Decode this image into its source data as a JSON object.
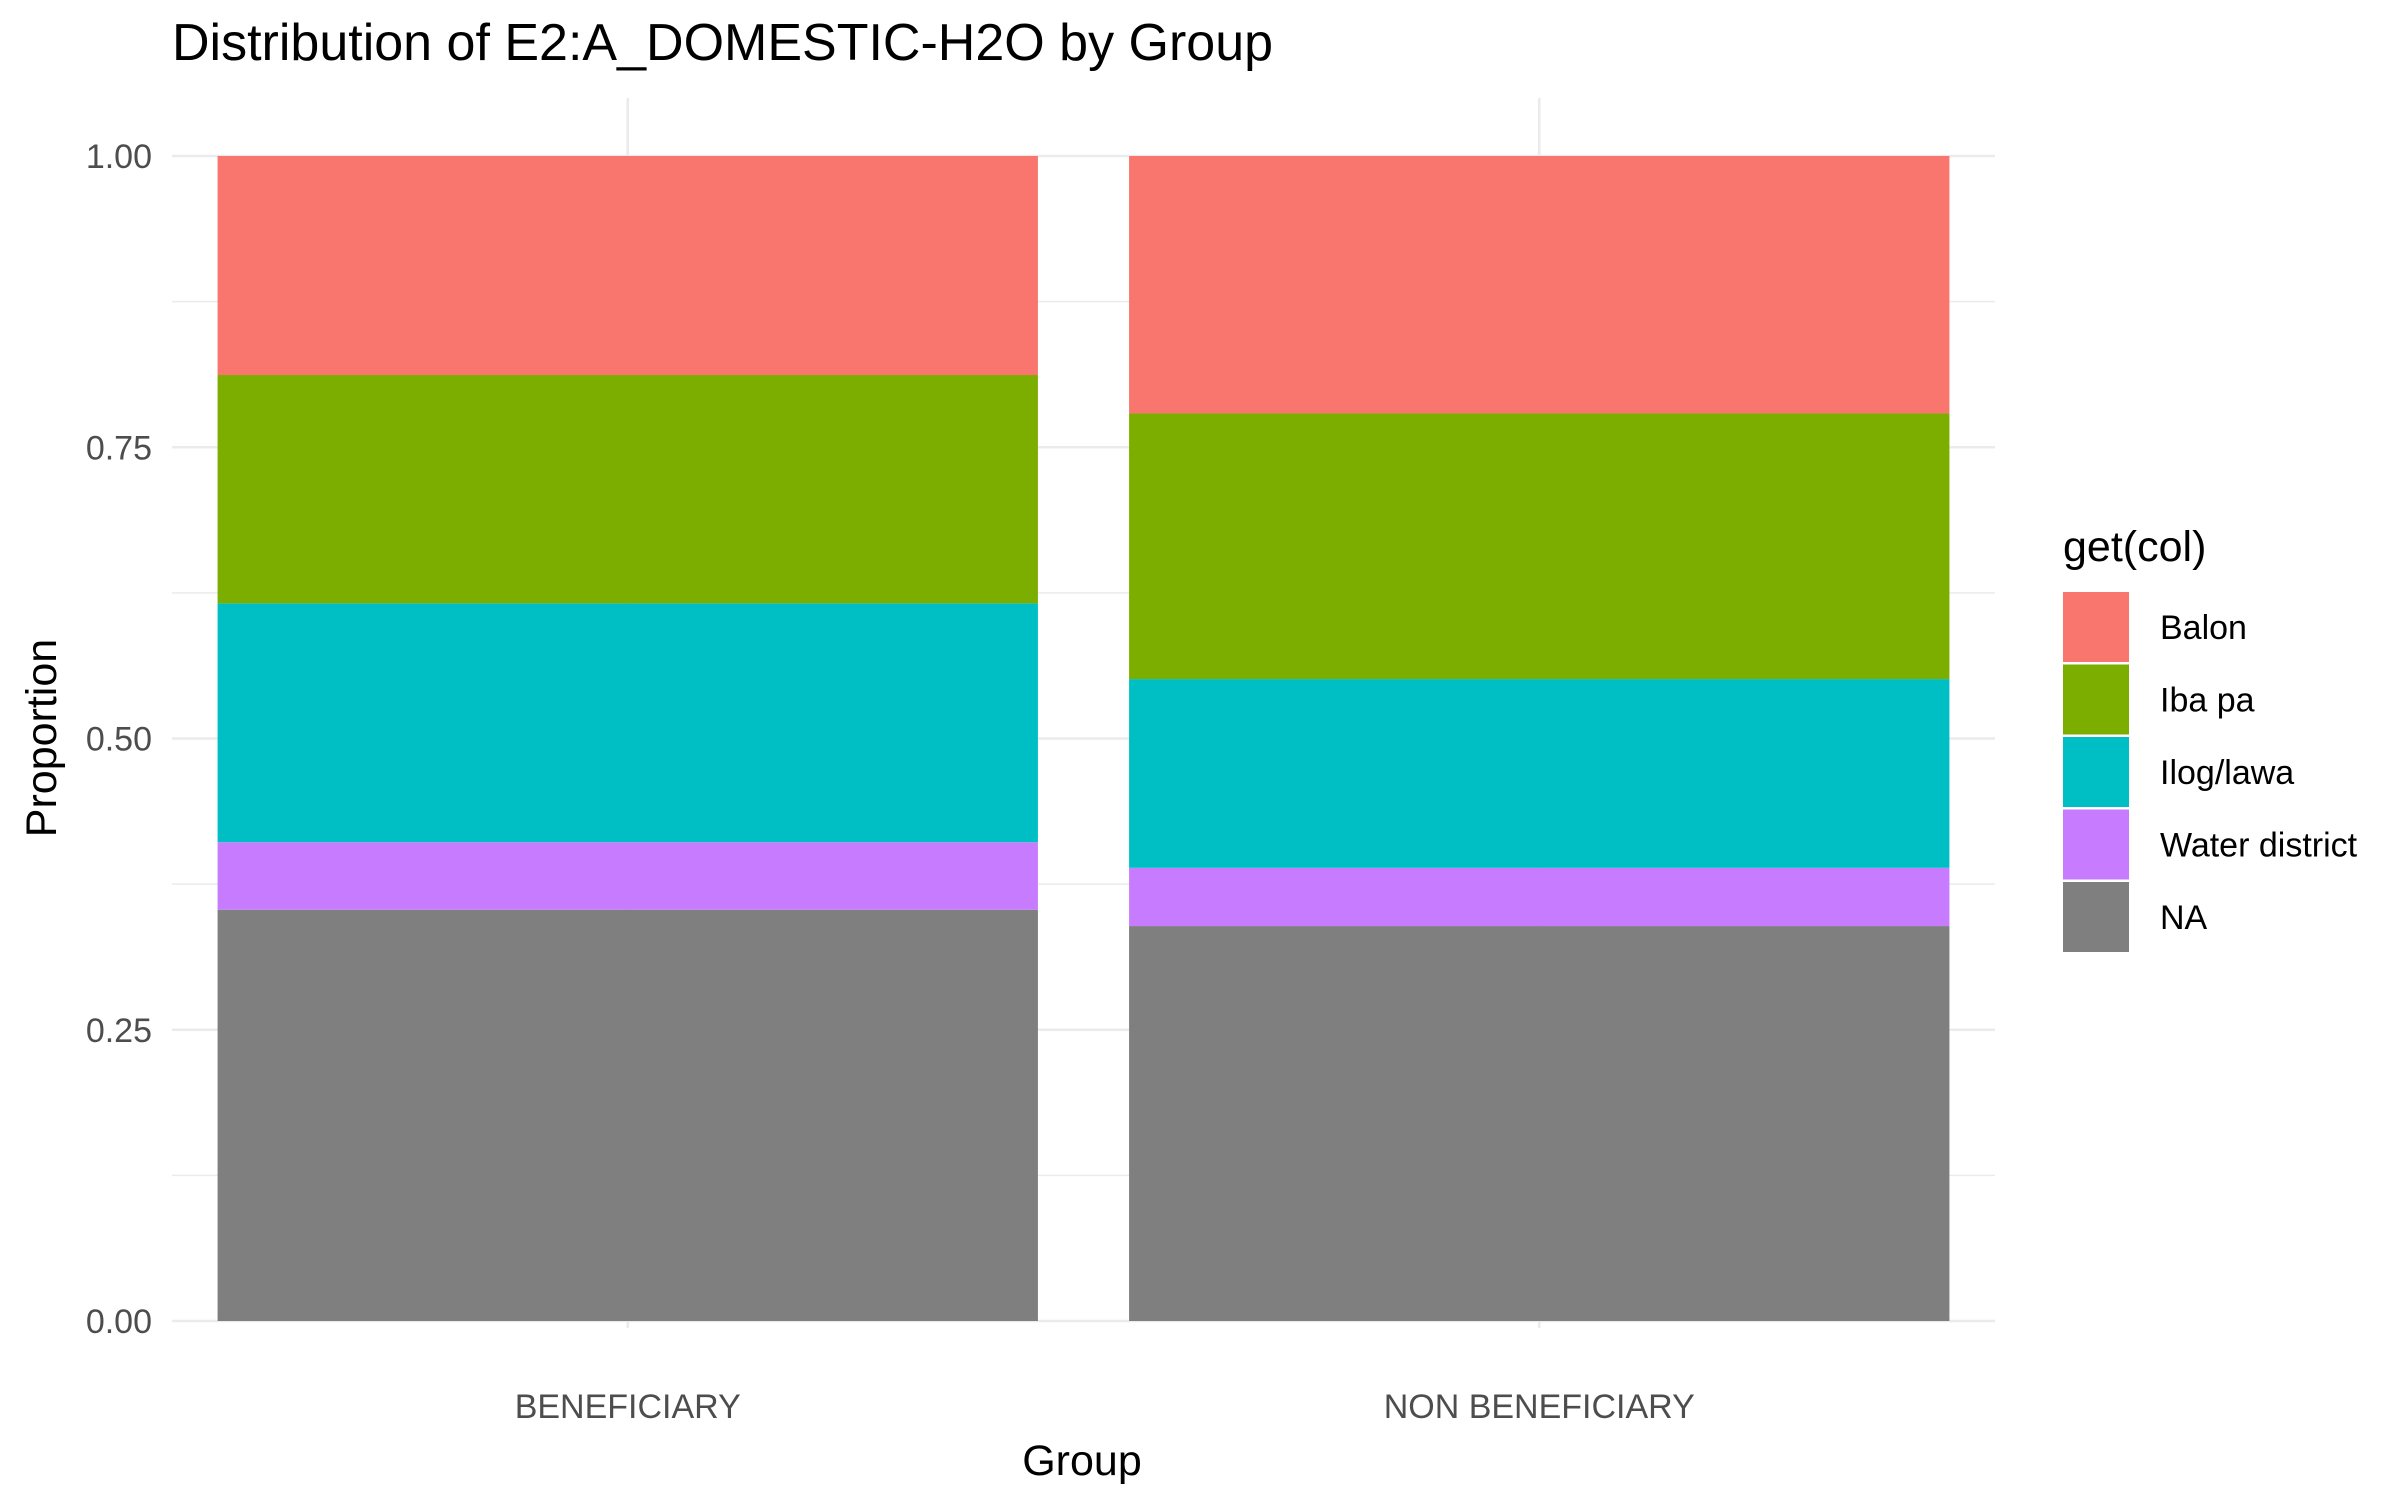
{
  "chart_data": {
    "type": "bar",
    "stacked": true,
    "title": "Distribution of E2:A_DOMESTIC-H2O by Group",
    "xlabel": "Group",
    "ylabel": "Proportion",
    "ylim": [
      0,
      1
    ],
    "yticks": [
      "0.00",
      "0.25",
      "0.50",
      "0.75",
      "1.00"
    ],
    "grid": true,
    "legend_position": "right",
    "legend_title": "get(col)",
    "categories": [
      "BENEFICIARY",
      "NON BENEFICIARY"
    ],
    "series": [
      {
        "name": "Balon",
        "color": "#F8766D",
        "values": [
          0.188,
          0.221
        ]
      },
      {
        "name": "Iba pa",
        "color": "#7CAE00",
        "values": [
          0.196,
          0.228
        ]
      },
      {
        "name": "Ilog/lawa",
        "color": "#00BFC4",
        "values": [
          0.205,
          0.162
        ]
      },
      {
        "name": "Water district",
        "color": "#C77CFF",
        "values": [
          0.058,
          0.05
        ]
      },
      {
        "name": "NA",
        "color": "#7F7F7F",
        "values": [
          0.353,
          0.339
        ]
      }
    ]
  }
}
